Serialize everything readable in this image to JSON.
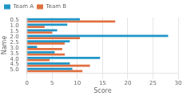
{
  "chart_data": {
    "type": "bar",
    "orientation": "horizontal",
    "xlabel": "Score",
    "ylabel": "Name",
    "categories": [
      "5.0",
      "4.5",
      "4.0",
      "3.5",
      "3.0",
      "2.5",
      "2.0",
      "1.5",
      "1.0",
      "0.5"
    ],
    "series": [
      {
        "name": "Team A",
        "color": "#2196c8",
        "values": [
          9.0,
          8.5,
          14.5,
          5.5,
          2.0,
          8.5,
          28.0,
          6.0,
          8.0,
          10.5
        ]
      },
      {
        "name": "Team B",
        "color": "#e07040",
        "values": [
          11.0,
          12.5,
          4.5,
          7.5,
          7.0,
          7.5,
          10.5,
          5.0,
          3.5,
          17.5
        ]
      }
    ],
    "xlim": [
      0,
      30
    ],
    "xticks": [
      0,
      5,
      10,
      15,
      20,
      25,
      30
    ],
    "grid": "x",
    "legend": "upper left"
  }
}
